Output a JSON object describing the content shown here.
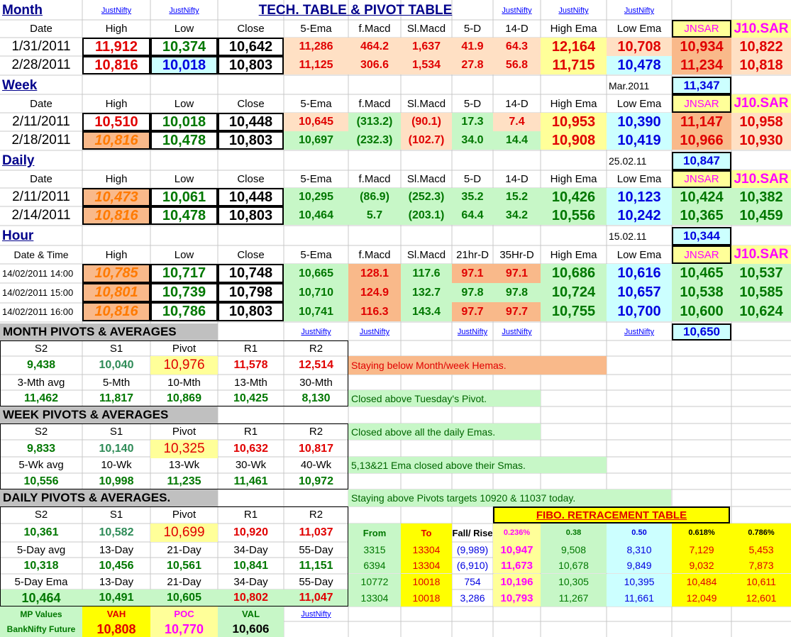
{
  "title": "TECH. TABLE   &  PIVOT TABLE",
  "link_text": "JustNifty",
  "month": {
    "label": "Month",
    "headers": [
      "Date",
      "High",
      "Low",
      "Close",
      "5-Ema",
      "f.Macd",
      "Sl.Macd",
      "5-D",
      "14-D",
      "High Ema",
      "Low Ema",
      "JNSAR",
      "J10.SAR"
    ],
    "rows": [
      [
        "1/31/2011",
        "11,912",
        "10,374",
        "10,642",
        "11,286",
        "464.2",
        "1,637",
        "41.9",
        "64.3",
        "12,164",
        "10,708",
        "10,934",
        "10,822"
      ],
      [
        "2/28/2011",
        "10,816",
        "10,018",
        "10,803",
        "11,125",
        "306.6",
        "1,534",
        "27.8",
        "56.8",
        "11,715",
        "10,478",
        "11,234",
        "10,818"
      ]
    ]
  },
  "week": {
    "label": "Week",
    "side_label": "Mar.2011",
    "side_value": "11,347",
    "headers": [
      "Date",
      "High",
      "Low",
      "Close",
      "5-Ema",
      "f.Macd",
      "Sl.Macd",
      "5-D",
      "14-D",
      "High Ema",
      "Low Ema",
      "JNSAR",
      "J10.SAR"
    ],
    "rows": [
      [
        "2/11/2011",
        "10,510",
        "10,018",
        "10,448",
        "10,645",
        "(313.2)",
        "(90.1)",
        "17.3",
        "7.4",
        "10,953",
        "10,390",
        "11,147",
        "10,958"
      ],
      [
        "2/18/2011",
        "10,816",
        "10,478",
        "10,803",
        "10,697",
        "(232.3)",
        "(102.7)",
        "34.0",
        "14.4",
        "10,908",
        "10,419",
        "10,966",
        "10,930"
      ]
    ]
  },
  "daily": {
    "label": "Daily",
    "side_label": "25.02.11",
    "side_value": "10,847",
    "headers": [
      "Date",
      "High",
      "Low",
      "Close",
      "5-Ema",
      "f.Macd",
      "Sl.Macd",
      "5-D",
      "14-D",
      "High Ema",
      "Low Ema",
      "JNSAR",
      "J10.SAR"
    ],
    "rows": [
      [
        "2/11/2011",
        "10,473",
        "10,061",
        "10,448",
        "10,295",
        "(86.9)",
        "(252.3)",
        "35.2",
        "15.2",
        "10,426",
        "10,123",
        "10,424",
        "10,382"
      ],
      [
        "2/14/2011",
        "10,816",
        "10,478",
        "10,803",
        "10,464",
        "5.7",
        "(203.1)",
        "64.4",
        "34.2",
        "10,556",
        "10,242",
        "10,365",
        "10,459"
      ]
    ]
  },
  "hour": {
    "label": "Hour",
    "side_label": "15.02.11",
    "side_value": "10,344",
    "headers": [
      "Date & Time",
      "High",
      "Low",
      "Close",
      "5-Ema",
      "f.Macd",
      "Sl.Macd",
      "21hr-D",
      "35Hr-D",
      "High Ema",
      "Low Ema",
      "JNSAR",
      "J10.SAR"
    ],
    "rows": [
      [
        "14/02/2011 14:00",
        "10,785",
        "10,717",
        "10,748",
        "10,665",
        "128.1",
        "117.6",
        "97.1",
        "97.1",
        "10,686",
        "10,616",
        "10,465",
        "10,537"
      ],
      [
        "14/02/2011 15:00",
        "10,801",
        "10,739",
        "10,798",
        "10,710",
        "124.9",
        "132.7",
        "97.8",
        "97.8",
        "10,724",
        "10,657",
        "10,538",
        "10,585"
      ],
      [
        "14/02/2011 16:00",
        "10,816",
        "10,786",
        "10,803",
        "10,741",
        "116.3",
        "143.4",
        "97.7",
        "97.7",
        "10,755",
        "10,700",
        "10,600",
        "10,624"
      ]
    ],
    "extra_value": "10,650"
  },
  "month_pivots": {
    "title": "MONTH  PIVOTS  &  AVERAGES",
    "headers": [
      "S2",
      "S1",
      "Pivot",
      "R1",
      "R2"
    ],
    "values": [
      "9,438",
      "10,040",
      "10,976",
      "11,578",
      "12,514"
    ],
    "avg_headers": [
      "3-Mth avg",
      "5-Mth",
      "10-Mth",
      "13-Mth",
      "30-Mth"
    ],
    "avg_values": [
      "11,462",
      "11,817",
      "10,869",
      "10,425",
      "8,130"
    ],
    "note1": "Staying below Month/week Hemas.",
    "note2": "Closed above Tuesday's Pivot."
  },
  "week_pivots": {
    "title": "WEEK  PIVOTS  &  AVERAGES",
    "headers": [
      "S2",
      "S1",
      "Pivot",
      "R1",
      "R2"
    ],
    "values": [
      "9,833",
      "10,140",
      "10,325",
      "10,632",
      "10,817"
    ],
    "avg_headers": [
      "5-Wk avg",
      "10-Wk",
      "13-Wk",
      "30-Wk",
      "40-Wk"
    ],
    "avg_values": [
      "10,556",
      "10,998",
      "11,235",
      "11,461",
      "10,972"
    ],
    "note1": "Closed above all the daily Emas.",
    "note2": "5,13&21 Ema closed above their Smas."
  },
  "daily_pivots": {
    "title": "DAILY  PIVOTS  &  AVERAGES.",
    "headers": [
      "S2",
      "S1",
      "Pivot",
      "R1",
      "R2"
    ],
    "values": [
      "10,361",
      "10,582",
      "10,699",
      "10,920",
      "11,037"
    ],
    "avg_headers": [
      "5-Day avg",
      "13-Day",
      "21-Day",
      "34-Day",
      "55-Day"
    ],
    "avg_values": [
      "10,318",
      "10,456",
      "10,561",
      "10,841",
      "11,151"
    ],
    "ema_headers": [
      "5-Day Ema",
      "13-Day",
      "21-Day",
      "34-Day",
      "55-Day"
    ],
    "ema_values": [
      "10,464",
      "10,491",
      "10,605",
      "10,802",
      "11,047"
    ],
    "note1": "Staying above Pivots targets 10920 & 11037 today."
  },
  "mp": {
    "label1": "MP Values",
    "label2": "BankNifty Future",
    "headers": [
      "VAH",
      "POC",
      "VAL"
    ],
    "values": [
      "10,808",
      "10,770",
      "10,606"
    ]
  },
  "fibo": {
    "title": "FIBO. RETRACEMENT TABLE",
    "headers": [
      "From",
      "To",
      "Fall/ Rise",
      "0.236%",
      "0.38",
      "0.50",
      "0.618%",
      "0.786%"
    ],
    "rows": [
      [
        "3315",
        "13304",
        "(9,989)",
        "10,947",
        "9,508",
        "8,310",
        "7,129",
        "5,453"
      ],
      [
        "6394",
        "13304",
        "(6,910)",
        "11,673",
        "10,678",
        "9,849",
        "9,032",
        "7,873"
      ],
      [
        "10772",
        "10018",
        "754",
        "10,196",
        "10,305",
        "10,395",
        "10,484",
        "10,611"
      ],
      [
        "13304",
        "10018",
        "3,286",
        "10,793",
        "11,267",
        "11,661",
        "12,049",
        "12,601"
      ]
    ]
  }
}
